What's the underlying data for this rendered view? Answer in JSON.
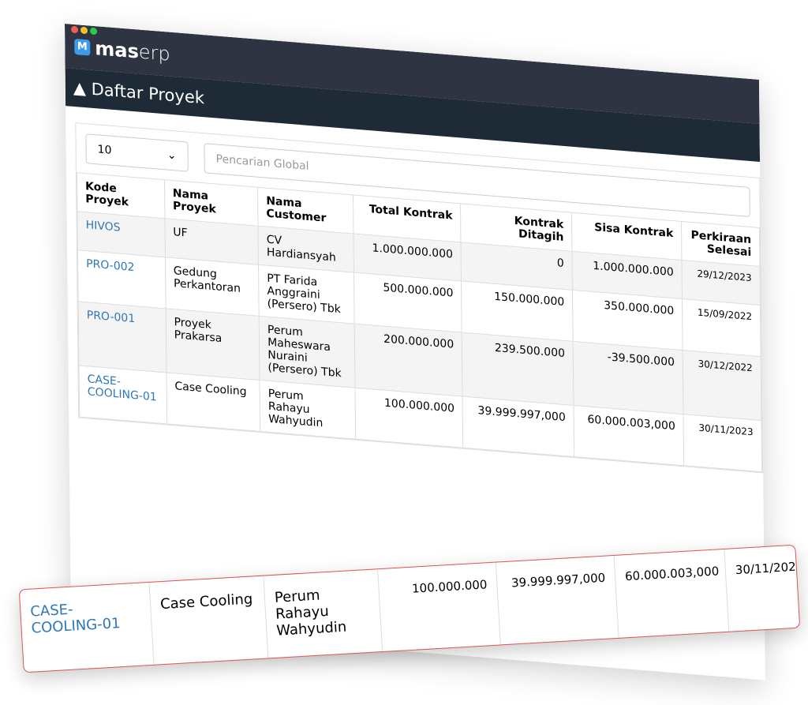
{
  "app": {
    "brand_icon": "M",
    "brand_bold": "mas",
    "brand_light": "erp"
  },
  "page_title": "Daftar Proyek",
  "controls": {
    "page_size": "10",
    "search_placeholder": "Pencarian Global"
  },
  "table": {
    "headers": [
      "Kode Proyek",
      "Nama Proyek",
      "Nama Customer",
      "Total Kontrak",
      "Kontrak Ditagih",
      "Sisa Kontrak",
      "Perkiraan Selesai"
    ],
    "rows": [
      [
        "HIVOS",
        "UF",
        "CV Hardiansyah",
        "1.000.000.000",
        "0",
        "1.000.000.000",
        "29/12/2023"
      ],
      [
        "PRO-002",
        "Gedung Perkantoran",
        "PT Farida Anggraini (Persero) Tbk",
        "500.000.000",
        "150.000.000",
        "350.000.000",
        "15/09/2022"
      ],
      [
        "PRO-001",
        "Proyek Prakarsa",
        "Perum Maheswara Nuraini (Persero) Tbk",
        "200.000.000",
        "239.500.000",
        "-39.500.000",
        "30/12/2022"
      ],
      [
        "CASE-COOLING-01",
        "Case Cooling",
        "Perum Rahayu Wahyudin",
        "100.000.000",
        "39.999.997,000",
        "60.000.003,000",
        "30/11/2023"
      ]
    ]
  }
}
